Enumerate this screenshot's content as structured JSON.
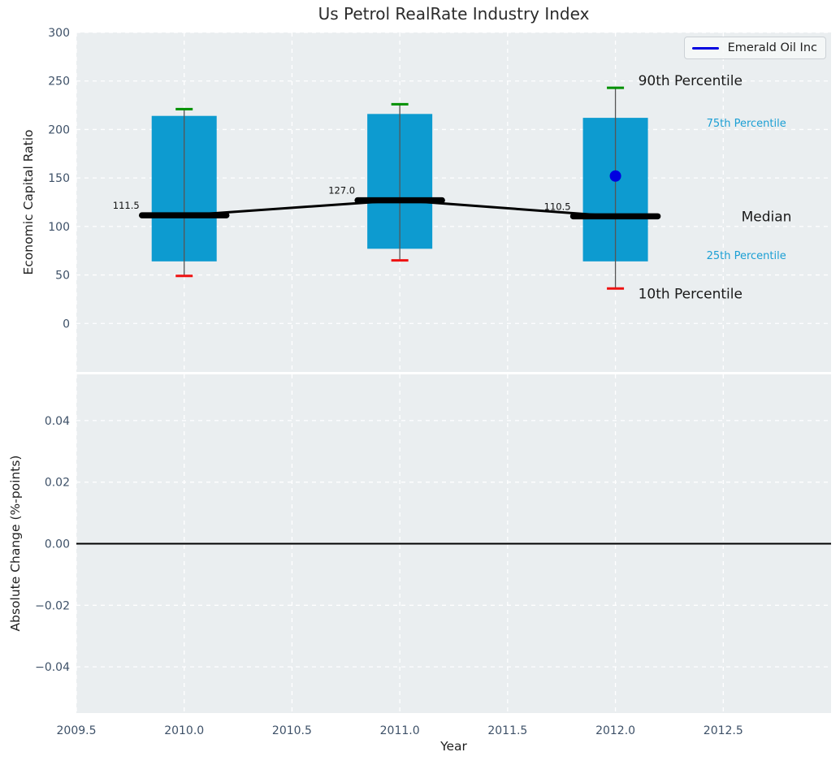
{
  "title": "Us Petrol RealRate Industry Index",
  "legend": {
    "label": "Emerald Oil Inc"
  },
  "colors": {
    "axes_bg": "#eaeef0",
    "grid": "#ffffff",
    "tick_label": "#3e5168",
    "box_fill": "#0d9bd0",
    "whisker": "#555555",
    "cap_top": "#009000",
    "cap_bottom": "#ee1111",
    "median_line": "#000000",
    "trend_line": "#000000",
    "company_dot": "#0000e0",
    "annotation_dark": "#1a1a1a",
    "annotation_accent": "#1b9fd4",
    "zero_line": "#000000"
  },
  "chart_data": {
    "type": "boxplot",
    "title": "Us Petrol RealRate Industry Index",
    "xlabel": "Year",
    "xlim": [
      2009.5,
      2013.0
    ],
    "xticks": [
      2009.5,
      2010.0,
      2010.5,
      2011.0,
      2011.5,
      2012.0,
      2012.5
    ],
    "xtick_labels": [
      "2009.5",
      "2010.0",
      "2010.5",
      "2011.0",
      "2011.5",
      "2012.0",
      "2012.5"
    ],
    "grid": true,
    "legend_position": "upper right",
    "top": {
      "ylabel": "Economic Capital Ratio",
      "ylim": [
        -50,
        300
      ],
      "yticks": [
        0,
        50,
        100,
        150,
        200,
        250,
        300
      ],
      "ytick_labels": [
        "0",
        "50",
        "100",
        "150",
        "200",
        "250",
        "300"
      ],
      "boxes": [
        {
          "year": 2010,
          "p10": 49,
          "p25": 64,
          "median": 111.5,
          "p75": 214,
          "p90": 221,
          "median_label": "111.5"
        },
        {
          "year": 2011,
          "p10": 65,
          "p25": 77,
          "median": 127.0,
          "p75": 216,
          "p90": 226,
          "median_label": "127.0"
        },
        {
          "year": 2012,
          "p10": 36,
          "p25": 64,
          "median": 110.5,
          "p75": 212,
          "p90": 243,
          "median_label": "110.5"
        }
      ],
      "company_series": {
        "name": "Emerald Oil Inc",
        "points": [
          {
            "year": 2012,
            "value": 152
          }
        ]
      },
      "annotations": [
        {
          "label": "90th Percentile",
          "at": "p90",
          "tone": "dark",
          "size": "lg"
        },
        {
          "label": "75th Percentile",
          "at": "p75",
          "tone": "accent",
          "size": "sm"
        },
        {
          "label": "Median",
          "at": "median",
          "tone": "dark",
          "size": "lg"
        },
        {
          "label": "25th Percentile",
          "at": "p25",
          "tone": "accent",
          "size": "sm"
        },
        {
          "label": "10th Percentile",
          "at": "p10",
          "tone": "dark",
          "size": "lg"
        }
      ]
    },
    "bottom": {
      "ylabel": "Absolute Change (%-points)",
      "ylim": [
        -0.055,
        0.055
      ],
      "yticks": [
        0.04,
        0.02,
        0.0,
        -0.02,
        -0.04
      ],
      "ytick_labels": [
        "0.04",
        "0.02",
        "0.00",
        "−0.02",
        "−0.04"
      ],
      "zero_line": 0.0
    }
  }
}
